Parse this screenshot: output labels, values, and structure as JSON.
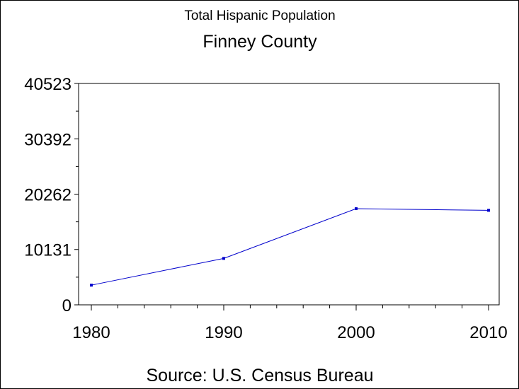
{
  "chart_data": {
    "type": "line",
    "subtitle": "Total Hispanic Population",
    "title": "Finney County",
    "xlabel": "",
    "ylabel": "",
    "footnote": "Source: U.S. Census Bureau",
    "x": [
      1980,
      1990,
      2000,
      2010
    ],
    "x_ticks": [
      "1980",
      "1990",
      "2000",
      "2010"
    ],
    "xlim": [
      1980,
      2010
    ],
    "y_ticks": [
      0,
      10131,
      20262,
      30392,
      40523
    ],
    "ylim": [
      0,
      40523
    ],
    "series": [
      {
        "values": [
          3600,
          8500,
          17600,
          17300
        ]
      }
    ],
    "grid": false,
    "colors": {
      "line": "#0000cc",
      "axis": "#000000",
      "background": "#ffffff"
    }
  }
}
